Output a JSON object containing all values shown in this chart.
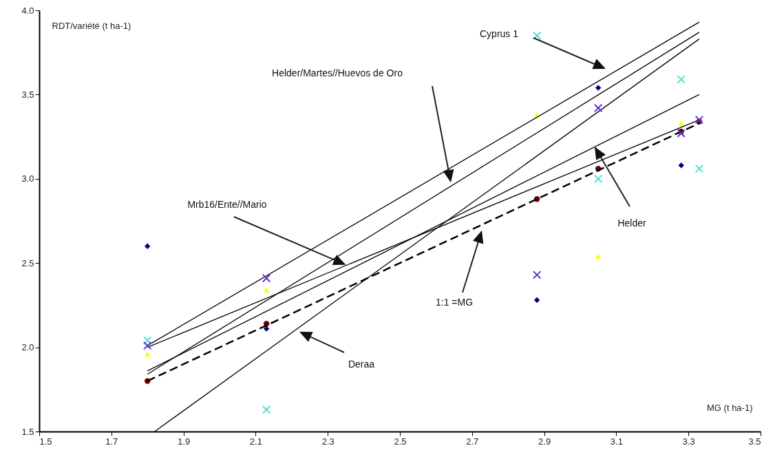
{
  "chart_data": {
    "type": "scatter",
    "xlabel": "MG (t ha-1)",
    "ylabel": "RDT/variété (t ha-1)",
    "x": [
      1.8,
      2.13,
      2.88,
      3.05,
      3.28,
      3.33
    ],
    "xlim": [
      1.5,
      3.5
    ],
    "xticks": [
      1.5,
      1.7,
      1.9,
      2.1,
      2.3,
      2.5,
      2.7,
      2.9,
      3.1,
      3.3,
      3.5
    ],
    "ylim": [
      1.5,
      4.0
    ],
    "yticks": [
      1.5,
      {
        "value": 2,
        "label": "2.0"
      },
      2.5,
      {
        "value": 3,
        "label": "3.0"
      },
      3.5,
      {
        "value": 4,
        "label": "4.0"
      }
    ],
    "grid": false,
    "series": [
      {
        "color": "#000080",
        "marker": "diamond",
        "values": [
          2.6,
          2.11,
          2.28,
          3.54,
          3.08,
          null
        ]
      },
      {
        "color": "#55e0d0",
        "marker": "cross",
        "values": [
          2.04,
          1.63,
          3.85,
          3.0,
          3.59,
          3.06
        ]
      },
      {
        "color": "#6633cc",
        "marker": "cross",
        "values": [
          2.01,
          2.41,
          2.43,
          3.42,
          3.27,
          3.35
        ]
      },
      {
        "color": "#ffff00",
        "marker": "triangle",
        "values": [
          1.96,
          2.34,
          3.38,
          2.54,
          3.33,
          null
        ]
      },
      {
        "color": "#660000",
        "marker": "circle",
        "values": [
          1.8,
          2.14,
          2.88,
          3.06,
          3.28,
          3.34
        ]
      },
      {
        "type": "line",
        "color": "#000000",
        "line_style": "solid",
        "marker": "none",
        "x": [
          1.8,
          3.33
        ],
        "values": [
          2.01,
          3.93
        ]
      },
      {
        "type": "line",
        "color": "#000000",
        "line_style": "solid",
        "marker": "none",
        "x": [
          1.8,
          3.33
        ],
        "values": [
          1.84,
          3.87
        ]
      },
      {
        "type": "line",
        "color": "#000000",
        "line_style": "solid",
        "marker": "none",
        "x": [
          1.82,
          3.33
        ],
        "values": [
          1.5,
          3.83
        ]
      },
      {
        "type": "line",
        "color": "#000000",
        "line_style": "solid",
        "marker": "none",
        "x": [
          1.8,
          3.33
        ],
        "values": [
          1.86,
          3.5
        ]
      },
      {
        "type": "line",
        "color": "#000000",
        "line_style": "solid",
        "marker": "none",
        "x": [
          1.8,
          3.33
        ],
        "values": [
          2.0,
          3.35
        ]
      },
      {
        "type": "line",
        "color": "#000000",
        "line_style": "dashed",
        "marker": "none",
        "x": [
          1.8,
          3.33
        ],
        "values": [
          1.8,
          3.33
        ]
      }
    ],
    "annotations": [
      "Cyprus 1",
      "Helder/Martes//Huevos de Oro",
      {
        "text": "Mrb16/Ente//Mario",
        "x": 2.35,
        "y": 2.49
      },
      "1:1 =MG",
      "Deraa",
      {
        "text": "Helder",
        "x": 3.04,
        "y": 3.19
      }
    ]
  }
}
